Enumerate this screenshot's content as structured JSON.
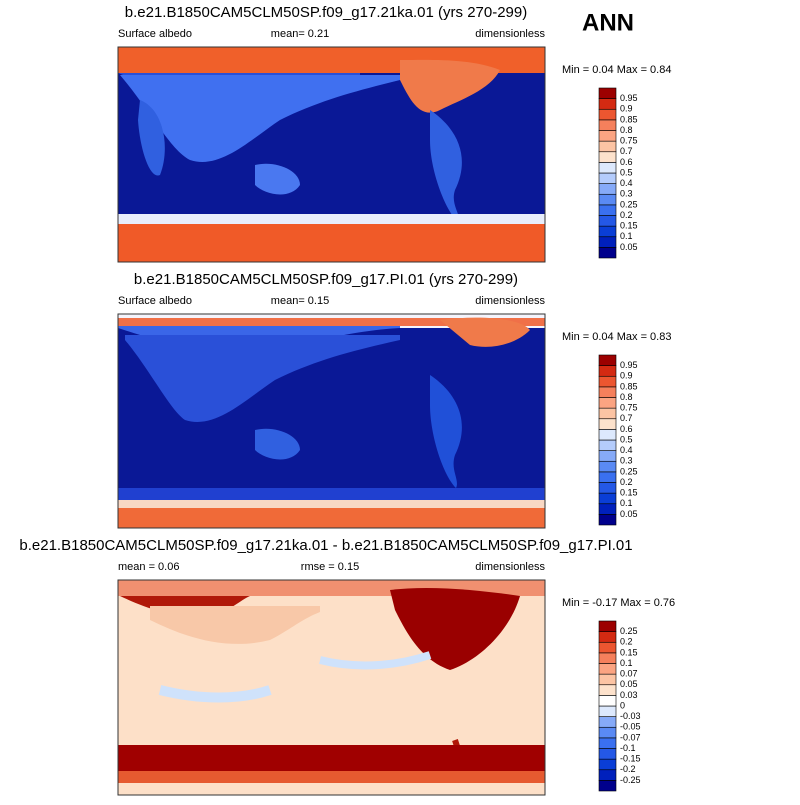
{
  "header": {
    "season": "ANN"
  },
  "panels": [
    {
      "title": "b.e21.B1850CAM5CLM50SP.f09_g17.21ka.01 (yrs 270-299)",
      "left": "Surface albedo",
      "center": "mean=   0.21",
      "right": "dimensionless",
      "minmax": "Min =  0.04 Max =   0.84",
      "colorbar": [
        "0.05",
        "0.1",
        "0.15",
        "0.2",
        "0.25",
        "0.3",
        "0.4",
        "0.5",
        "0.6",
        "0.7",
        "0.75",
        "0.8",
        "0.85",
        "0.9",
        "0.95"
      ]
    },
    {
      "title": "b.e21.B1850CAM5CLM50SP.f09_g17.PI.01 (yrs 270-299)",
      "left": "Surface albedo",
      "center": "mean=   0.15",
      "right": "dimensionless",
      "minmax": "Min =  0.04 Max =   0.83",
      "colorbar": [
        "0.05",
        "0.1",
        "0.15",
        "0.2",
        "0.25",
        "0.3",
        "0.4",
        "0.5",
        "0.6",
        "0.7",
        "0.75",
        "0.8",
        "0.85",
        "0.9",
        "0.95"
      ]
    },
    {
      "title": "b.e21.B1850CAM5CLM50SP.f09_g17.21ka.01 - b.e21.B1850CAM5CLM50SP.f09_g17.PI.01",
      "left": "mean =   0.06",
      "center": "rmse =   0.15",
      "right": "dimensionless",
      "minmax": "Min =  -0.17 Max =   0.76",
      "colorbar": [
        "-0.25",
        "-0.2",
        "-0.15",
        "-0.1",
        "-0.07",
        "-0.05",
        "-0.03",
        "0",
        "0.03",
        "0.05",
        "0.07",
        "0.1",
        "0.15",
        "0.2",
        "0.25"
      ]
    }
  ]
}
